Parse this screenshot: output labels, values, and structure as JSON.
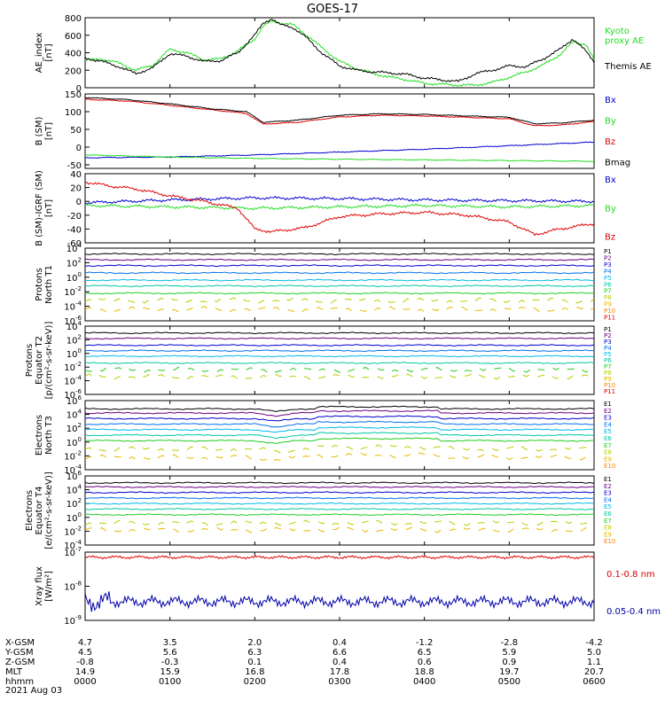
{
  "title": "GOES-17",
  "footer": {
    "rows": [
      {
        "label": "X-GSM",
        "values": [
          "4.7",
          "3.5",
          "2.0",
          "0.4",
          "-1.2",
          "-2.8",
          "-4.2"
        ]
      },
      {
        "label": "Y-GSM",
        "values": [
          "4.5",
          "5.6",
          "6.3",
          "6.6",
          "6.5",
          "5.9",
          "5.0"
        ]
      },
      {
        "label": "Z-GSM",
        "values": [
          "-0.8",
          "-0.3",
          "0.1",
          "0.4",
          "0.6",
          "0.9",
          "1.1"
        ]
      },
      {
        "label": "MLT",
        "values": [
          "14.9",
          "15.9",
          "16.8",
          "17.8",
          "18.8",
          "19.7",
          "20.7"
        ]
      },
      {
        "label": "hhmm",
        "values": [
          "0000",
          "0100",
          "0200",
          "0300",
          "0400",
          "0500",
          "0600"
        ]
      }
    ],
    "date": "2021 Aug 03"
  },
  "colors": {
    "black": "#000000",
    "blue": "#0000cc",
    "green": "#22dd22",
    "red": "#dd0000",
    "darkred": "#b00000",
    "navy": "#0000aa",
    "p_colors": [
      "#000000",
      "#6a0080",
      "#0000cc",
      "#0070ee",
      "#00b8e8",
      "#00c8a0",
      "#22cc22",
      "#bbcc00",
      "#e8b800",
      "#ff8000",
      "#dd0000",
      "#b00000"
    ]
  },
  "chart_data": [
    {
      "type": "line",
      "id": "ae",
      "ylabel": "AE_index\n[nT]",
      "ylim": [
        0,
        800
      ],
      "yticks": [
        0,
        200,
        400,
        600,
        800
      ],
      "xlim": [
        0,
        6
      ],
      "series": [
        {
          "name": "Kyoto\nproxy AE",
          "color": "#22dd22",
          "x": [
            0,
            0.2,
            0.4,
            0.6,
            0.8,
            1.0,
            1.2,
            1.4,
            1.6,
            1.8,
            2.0,
            2.1,
            2.2,
            2.3,
            2.45,
            2.6,
            2.8,
            3.0,
            3.2,
            3.4,
            3.6,
            3.8,
            4.0,
            4.2,
            4.4,
            4.6,
            4.8,
            5.0,
            5.2,
            5.4,
            5.6,
            5.75,
            5.9,
            6.0
          ],
          "y": [
            310,
            330,
            280,
            200,
            260,
            440,
            400,
            320,
            330,
            420,
            560,
            700,
            760,
            740,
            720,
            610,
            450,
            300,
            220,
            160,
            120,
            90,
            50,
            40,
            30,
            30,
            60,
            120,
            180,
            260,
            380,
            520,
            500,
            320
          ]
        },
        {
          "name": "Themis AE",
          "color": "#000000",
          "x": [
            0,
            0.2,
            0.4,
            0.6,
            0.8,
            1.0,
            1.2,
            1.4,
            1.6,
            1.8,
            2.0,
            2.1,
            2.2,
            2.3,
            2.45,
            2.6,
            2.8,
            3.0,
            3.2,
            3.4,
            3.6,
            3.8,
            4.0,
            4.2,
            4.4,
            4.6,
            4.8,
            5.0,
            5.2,
            5.4,
            5.6,
            5.75,
            5.9,
            6.0
          ],
          "y": [
            340,
            300,
            240,
            160,
            230,
            390,
            360,
            300,
            310,
            400,
            600,
            740,
            790,
            720,
            690,
            580,
            390,
            250,
            200,
            180,
            170,
            150,
            110,
            90,
            70,
            160,
            200,
            250,
            240,
            330,
            440,
            560,
            420,
            300
          ]
        }
      ]
    },
    {
      "type": "line",
      "id": "bsm",
      "ylabel": "B (SM)\n[nT]",
      "ylim": [
        -60,
        150
      ],
      "yticks": [
        -50,
        0,
        50,
        100,
        150
      ],
      "xlim": [
        0,
        6
      ],
      "series": [
        {
          "name": "Bx",
          "color": "#0000cc",
          "x": [
            0,
            1,
            2,
            3,
            4,
            5,
            6
          ],
          "y": [
            -30,
            -28,
            -22,
            -14,
            -6,
            4,
            14
          ]
        },
        {
          "name": "By",
          "color": "#22dd22",
          "x": [
            0,
            1,
            2,
            3,
            4,
            5,
            6
          ],
          "y": [
            -22,
            -28,
            -32,
            -34,
            -36,
            -38,
            -40
          ]
        },
        {
          "name": "Bz",
          "color": "#dd0000",
          "x": [
            0,
            0.5,
            1.0,
            1.5,
            1.9,
            2.1,
            2.5,
            3.0,
            3.5,
            4.0,
            4.5,
            5.0,
            5.3,
            5.6,
            6.0
          ],
          "y": [
            135,
            130,
            118,
            105,
            95,
            65,
            70,
            85,
            90,
            88,
            84,
            80,
            60,
            62,
            72
          ]
        },
        {
          "name": "Bmag",
          "color": "#000000",
          "x": [
            0,
            0.5,
            1.0,
            1.5,
            1.9,
            2.1,
            2.5,
            3.0,
            3.5,
            4.0,
            4.5,
            5.0,
            5.3,
            5.6,
            6.0
          ],
          "y": [
            140,
            134,
            122,
            108,
            100,
            70,
            76,
            90,
            94,
            92,
            88,
            84,
            66,
            68,
            76
          ]
        }
      ]
    },
    {
      "type": "line",
      "id": "bigrf",
      "ylabel": "B (SM)-IGRF (SM)\n[nT]",
      "ylim": [
        -60,
        40
      ],
      "yticks": [
        -60,
        -40,
        -20,
        0,
        20,
        40
      ],
      "xlim": [
        0,
        6
      ],
      "series": [
        {
          "name": "Bx",
          "color": "#0000cc",
          "x": [
            0,
            1,
            2,
            3,
            4,
            5,
            6
          ],
          "y": [
            -2,
            2,
            5,
            4,
            2,
            1,
            0
          ]
        },
        {
          "name": "By",
          "color": "#22dd22",
          "x": [
            0,
            1,
            2,
            3,
            4,
            5,
            6
          ],
          "y": [
            -6,
            -8,
            -10,
            -8,
            -6,
            -8,
            -6
          ]
        },
        {
          "name": "Bz",
          "color": "#dd0000",
          "x": [
            0,
            0.3,
            0.6,
            1.0,
            1.4,
            1.8,
            2.0,
            2.2,
            2.6,
            3.0,
            3.5,
            4.0,
            4.5,
            5.0,
            5.3,
            5.6,
            6.0
          ],
          "y": [
            28,
            22,
            18,
            8,
            0,
            -10,
            -40,
            -44,
            -38,
            -22,
            -18,
            -16,
            -20,
            -30,
            -48,
            -40,
            -32
          ]
        }
      ]
    },
    {
      "type": "line",
      "id": "pn",
      "yscale": "log",
      "ylabel": "Protons\nNorth T1",
      "ylim": [
        -6,
        4
      ],
      "ytick_exponents": [
        -6,
        -4,
        -2,
        0,
        2,
        4
      ],
      "xlim": [
        0,
        6
      ],
      "levels": [
        3.2,
        2.4,
        1.6,
        0.6,
        -0.4,
        -1.2,
        -2.2,
        -3.2,
        -4.4
      ],
      "series_names": [
        "P1",
        "P2",
        "P3",
        "P4",
        "P5",
        "P6",
        "P7",
        "P8",
        "P9",
        "P10",
        "P11"
      ]
    },
    {
      "type": "line",
      "id": "pe",
      "yscale": "log",
      "ylabel": "Protons\nEquator T2\n[p/(cm²-s-sr-keV)]",
      "ylim": [
        -6,
        4
      ],
      "ytick_exponents": [
        -6,
        -4,
        -2,
        0,
        2,
        4
      ],
      "xlim": [
        0,
        6
      ],
      "levels": [
        3.0,
        2.2,
        1.2,
        0.4,
        -0.4,
        -1.4,
        -2.4,
        -3.4
      ],
      "series_names": [
        "P1",
        "P2",
        "P3",
        "P4",
        "P5",
        "P6",
        "P7",
        "P8",
        "P9",
        "P10",
        "P11"
      ]
    },
    {
      "type": "line",
      "id": "en",
      "yscale": "log",
      "ylabel": "Electrons\nNorth T3",
      "ylim": [
        -4,
        6
      ],
      "ytick_exponents": [
        -4,
        -2,
        0,
        2,
        4,
        6
      ],
      "xlim": [
        0,
        6
      ],
      "levels": [
        4.8,
        4.2,
        3.4,
        2.6,
        1.8,
        1.0,
        0.2,
        -1.0,
        -2.2
      ],
      "series_names": [
        "E1",
        "E2",
        "E3",
        "E4",
        "E5",
        "E6",
        "E7",
        "E8",
        "E9",
        "E10"
      ]
    },
    {
      "type": "line",
      "id": "ee",
      "yscale": "log",
      "ylabel": "Electrons\nEquator T4\n[e/(cm²-s-sr-keV)]",
      "ylim": [
        -4,
        6
      ],
      "ytick_exponents": [
        -4,
        -2,
        0,
        2,
        4,
        6
      ],
      "xlim": [
        0,
        6
      ],
      "levels": [
        5.0,
        4.4,
        3.6,
        2.8,
        2.0,
        1.2,
        0.4,
        -0.8,
        -1.8
      ],
      "series_names": [
        "E1",
        "E2",
        "E3",
        "E4",
        "E5",
        "E6",
        "E7",
        "E8",
        "E9",
        "E10"
      ]
    },
    {
      "type": "line",
      "id": "xray",
      "yscale": "log",
      "ylabel": "Xray flux\n[W/m²]",
      "ylim": [
        -9,
        -7
      ],
      "ytick_exponents": [
        -9,
        -8,
        -7
      ],
      "xlim": [
        0,
        6
      ],
      "series": [
        {
          "name": "0.1-0.8 nm",
          "color": "#dd0000",
          "level": -7.15
        },
        {
          "name": "0.05-0.4 nm",
          "color": "#0000aa",
          "level": -8.45
        }
      ]
    }
  ]
}
